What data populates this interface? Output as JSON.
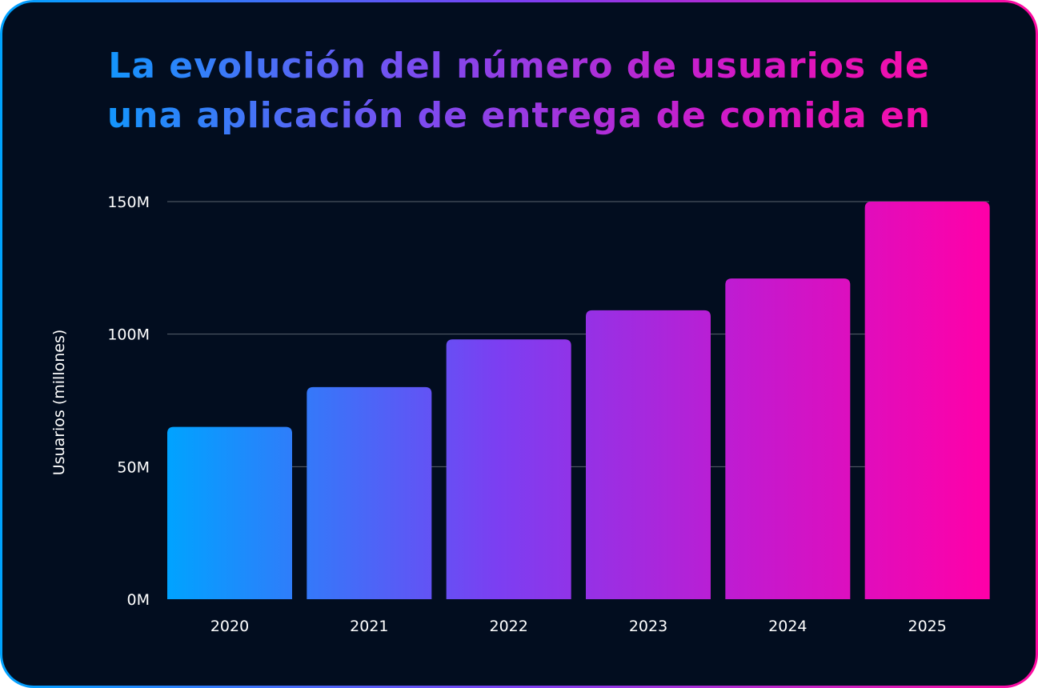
{
  "chart_data": {
    "type": "bar",
    "title": "La evolución del número de usuarios de una aplicación de entrega de comida en",
    "xlabel": "",
    "ylabel": "Usuarios (millones)",
    "categories": [
      "2020",
      "2021",
      "2022",
      "2023",
      "2024",
      "2025"
    ],
    "values": [
      65,
      80,
      98,
      109,
      121,
      150
    ],
    "ylim": [
      0,
      150
    ],
    "yticks": [
      0,
      50,
      100,
      150
    ],
    "ytick_labels": [
      "0M",
      "50M",
      "100M",
      "150M"
    ],
    "grid": true,
    "colors": {
      "start": "#00a3ff",
      "end": "#ff00a8",
      "background": "#020d1f"
    }
  }
}
